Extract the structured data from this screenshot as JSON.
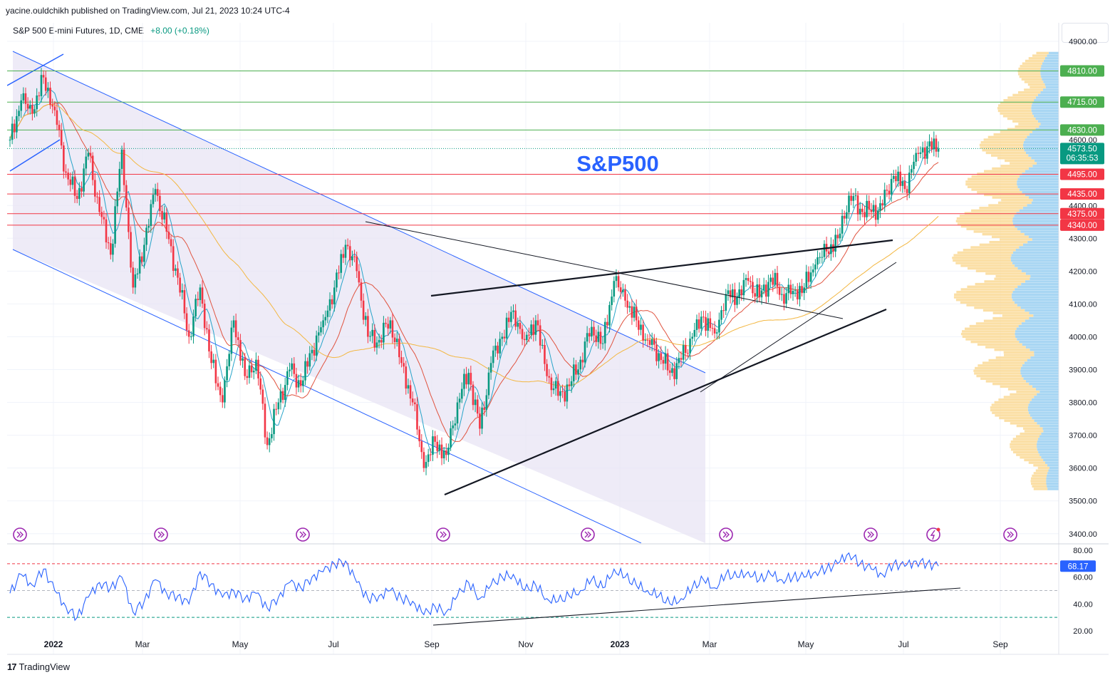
{
  "publish_line": "yacine.ouldchikh published on TradingView.com, Jul 21, 2023 10:24 UTC-4",
  "header": {
    "symbol": "S&P 500 E-mini Futures, 1D, CME",
    "change": "+8.00 (+0.18%)"
  },
  "footer": {
    "logo_mark": "17",
    "brand": "TradingView"
  },
  "colors": {
    "up": "#089981",
    "down": "#f23645",
    "resistance_green": "#4caf50",
    "support_red": "#f23645",
    "channel": "#2962ff",
    "rsi": "#2962ff",
    "ma_fast": "#26a4c9",
    "ma_mid": "#e0533f",
    "ma_slow": "#f3b742",
    "vp_up": "#9fd1f2",
    "vp_down": "#fbdc9b"
  },
  "chart_data": {
    "type": "candlestick",
    "title": "S&P500",
    "instrument": "S&P 500 E-mini Futures",
    "timeframe": "1D",
    "exchange": "CME",
    "last_price": 4573.5,
    "last_price_label": "4573.50",
    "countdown": "06:35:53",
    "y_axis": {
      "range": [
        3380,
        4940
      ],
      "ticks": [
        {
          "value": 4900,
          "label": "4900.00"
        },
        {
          "value": 4600,
          "label": "4600.00"
        },
        {
          "value": 4400,
          "label": "4400.00"
        },
        {
          "value": 4300,
          "label": "4300.00"
        },
        {
          "value": 4200,
          "label": "4200.00"
        },
        {
          "value": 4100,
          "label": "4100.00"
        },
        {
          "value": 4000,
          "label": "4000.00"
        },
        {
          "value": 3900,
          "label": "3900.00"
        },
        {
          "value": 3800,
          "label": "3800.00"
        },
        {
          "value": 3700,
          "label": "3700.00"
        },
        {
          "value": 3600,
          "label": "3600.00"
        },
        {
          "value": 3500,
          "label": "3500.00"
        },
        {
          "value": 3400,
          "label": "3400.00"
        }
      ]
    },
    "x_axis": {
      "ticks": [
        {
          "label": "2022",
          "bold": true
        },
        {
          "label": "Mar",
          "bold": false
        },
        {
          "label": "May",
          "bold": false
        },
        {
          "label": "Jul",
          "bold": false
        },
        {
          "label": "Sep",
          "bold": false
        },
        {
          "label": "Nov",
          "bold": false
        },
        {
          "label": "2023",
          "bold": true
        },
        {
          "label": "Mar",
          "bold": false
        },
        {
          "label": "May",
          "bold": false
        },
        {
          "label": "Jul",
          "bold": false
        },
        {
          "label": "Sep",
          "bold": false
        }
      ]
    },
    "horizontal_levels": [
      {
        "value": 4810,
        "label": "4810.00",
        "type": "resistance"
      },
      {
        "value": 4715,
        "label": "4715.00",
        "type": "resistance"
      },
      {
        "value": 4630,
        "label": "4630.00",
        "type": "resistance"
      },
      {
        "value": 4495,
        "label": "4495.00",
        "type": "support"
      },
      {
        "value": 4435,
        "label": "4435.00",
        "type": "support"
      },
      {
        "value": 4375,
        "label": "4375.00",
        "type": "support"
      },
      {
        "value": 4340,
        "label": "4340.00",
        "type": "support"
      }
    ],
    "price_path": [
      [
        0,
        4600
      ],
      [
        1,
        4720
      ],
      [
        2,
        4680
      ],
      [
        3,
        4790
      ],
      [
        4,
        4690
      ],
      [
        5,
        4500
      ],
      [
        6,
        4420
      ],
      [
        7,
        4560
      ],
      [
        8,
        4380
      ],
      [
        9,
        4250
      ],
      [
        10,
        4570
      ],
      [
        11,
        4150
      ],
      [
        12,
        4280
      ],
      [
        13,
        4450
      ],
      [
        14,
        4320
      ],
      [
        15,
        4180
      ],
      [
        16,
        4000
      ],
      [
        17,
        4150
      ],
      [
        18,
        3920
      ],
      [
        19,
        3800
      ],
      [
        20,
        4050
      ],
      [
        21,
        3880
      ],
      [
        22,
        3930
      ],
      [
        23,
        3670
      ],
      [
        24,
        3800
      ],
      [
        25,
        3900
      ],
      [
        26,
        3850
      ],
      [
        27,
        3960
      ],
      [
        28,
        4050
      ],
      [
        29,
        4150
      ],
      [
        30,
        4280
      ],
      [
        31,
        4200
      ],
      [
        32,
        4000
      ],
      [
        33,
        3990
      ],
      [
        34,
        4050
      ],
      [
        35,
        3920
      ],
      [
        36,
        3800
      ],
      [
        37,
        3600
      ],
      [
        38,
        3680
      ],
      [
        39,
        3640
      ],
      [
        40,
        3800
      ],
      [
        41,
        3890
      ],
      [
        42,
        3720
      ],
      [
        43,
        3920
      ],
      [
        44,
        4000
      ],
      [
        45,
        4080
      ],
      [
        46,
        3990
      ],
      [
        47,
        4050
      ],
      [
        48,
        3880
      ],
      [
        49,
        3820
      ],
      [
        50,
        3850
      ],
      [
        51,
        3930
      ],
      [
        52,
        4030
      ],
      [
        53,
        3980
      ],
      [
        54,
        4170
      ],
      [
        55,
        4110
      ],
      [
        56,
        4050
      ],
      [
        57,
        3990
      ],
      [
        58,
        3950
      ],
      [
        59,
        3890
      ],
      [
        60,
        3930
      ],
      [
        61,
        4000
      ],
      [
        62,
        4060
      ],
      [
        63,
        4010
      ],
      [
        64,
        4130
      ],
      [
        65,
        4120
      ],
      [
        66,
        4170
      ],
      [
        67,
        4120
      ],
      [
        68,
        4180
      ],
      [
        69,
        4130
      ],
      [
        70,
        4140
      ],
      [
        71,
        4150
      ],
      [
        72,
        4220
      ],
      [
        73,
        4260
      ],
      [
        74,
        4300
      ],
      [
        75,
        4430
      ],
      [
        76,
        4390
      ],
      [
        77,
        4380
      ],
      [
        78,
        4400
      ],
      [
        79,
        4490
      ],
      [
        80,
        4450
      ],
      [
        81,
        4560
      ],
      [
        82,
        4580
      ],
      [
        83,
        4573.5
      ]
    ],
    "indicators": {
      "rsi": {
        "name": "RSI",
        "range": [
          20,
          80
        ],
        "last_label": "68.17",
        "last": 68.17,
        "levels": [
          70,
          50,
          30
        ],
        "ticks": [
          {
            "value": 80,
            "label": "80.00"
          },
          {
            "value": 60,
            "label": "60.00"
          },
          {
            "value": 40,
            "label": "40.00"
          },
          {
            "value": 20,
            "label": "20.00"
          }
        ],
        "values": [
          48,
          62,
          54,
          66,
          50,
          38,
          30,
          45,
          56,
          52,
          60,
          34,
          42,
          58,
          48,
          46,
          40,
          64,
          55,
          45,
          50,
          44,
          48,
          37,
          45,
          56,
          52,
          60,
          64,
          70,
          72,
          56,
          44,
          46,
          50,
          44,
          42,
          32,
          38,
          34,
          46,
          56,
          44,
          54,
          60,
          62,
          50,
          54,
          44,
          42,
          46,
          50,
          58,
          52,
          66,
          60,
          54,
          50,
          46,
          40,
          44,
          52,
          58,
          52,
          62,
          60,
          64,
          58,
          62,
          58,
          60,
          60,
          64,
          66,
          70,
          78,
          70,
          66,
          62,
          70,
          68,
          72,
          70,
          68.17
        ]
      },
      "moving_averages": [
        "EMA 20",
        "EMA 50",
        "SMA 200"
      ]
    },
    "drawings": [
      "descending channel",
      "rising wedge trendlines",
      "RSI trendline"
    ]
  }
}
